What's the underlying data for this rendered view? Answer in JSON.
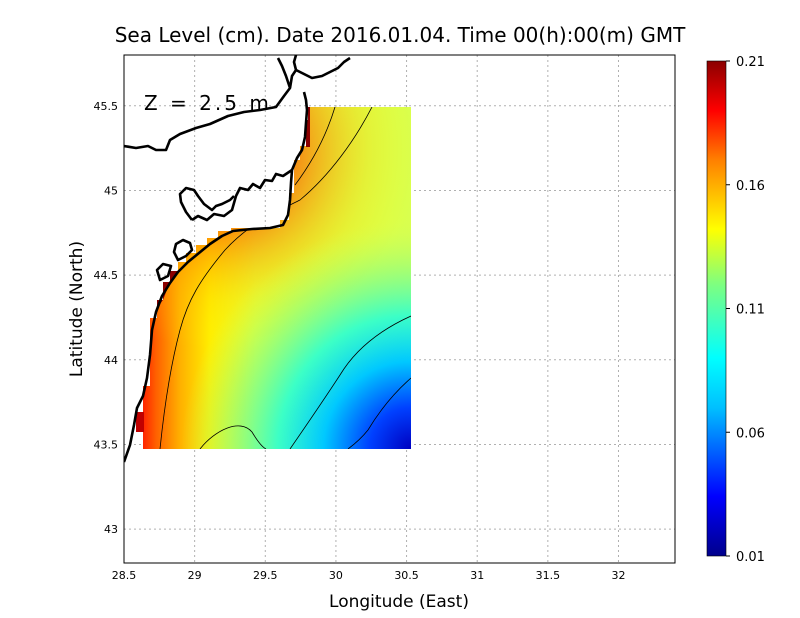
{
  "title": "Sea Level (cm). Date 2016.01.04. Time 00(h):00(m) GMT",
  "annotation": "Z = 2.5 m",
  "chart_data": {
    "type": "heatmap",
    "xlabel": "Longitude (East)",
    "ylabel": "Latitude (North)",
    "xlim": [
      28.5,
      32.4
    ],
    "ylim": [
      42.8,
      45.8
    ],
    "x_ticks": [
      "28.5",
      "29",
      "29.5",
      "30",
      "30.5",
      "31",
      "31.5",
      "32"
    ],
    "y_ticks": [
      "43",
      "43.5",
      "44",
      "44.5",
      "45",
      "45.5"
    ],
    "grid": true,
    "data_extent": {
      "lon": [
        28.65,
        30.55
      ],
      "lat": [
        43.48,
        45.5
      ]
    },
    "colorbar": {
      "ticks": [
        "0.21",
        "0.16",
        "0.11",
        "0.06",
        "0.01"
      ],
      "range": [
        0.01,
        0.21
      ],
      "colors": [
        "#00008b",
        "#0000ff",
        "#00c0ff",
        "#00ffff",
        "#7fff7f",
        "#ffff00",
        "#ff8000",
        "#ff0000",
        "#8b0000"
      ]
    },
    "field_description": "highest values (~0.20) along the western coast, decreasing eastward to ~0.13 in the centre and minimum (~0.01) in the south-east corner",
    "contour_levels": [
      0.06,
      0.09,
      0.12,
      0.15,
      0.18
    ]
  }
}
